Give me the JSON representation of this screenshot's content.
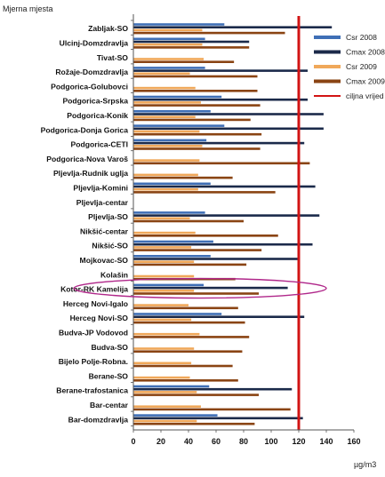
{
  "chart_data": {
    "type": "bar",
    "orientation": "horizontal",
    "title": "Mjerna mjesta",
    "xlabel": "µg/m3",
    "ylabel": "",
    "xlim": [
      0,
      160
    ],
    "xticks": [
      0,
      20,
      40,
      60,
      80,
      100,
      120,
      140,
      160
    ],
    "grid": false,
    "legend_position": "right",
    "target_line": {
      "name": "ciljna vrijed",
      "value": 120,
      "color": "#d21414"
    },
    "highlighted_category": "Kotor-RK Kamelija",
    "highlight_color": "#b0278a",
    "categories": [
      "Zabljak-SO",
      "Ulcinj-Domzdravlja",
      "Tivat-SO",
      "Rožaje-Domzdravlja",
      "Podgorica-Golubovci",
      "Podgorica-Srpska",
      "Podgorica-Konik",
      "Podgorica-Donja Gorica",
      "Podgorica-CETI",
      "Podgorica-Nova Varoš",
      "Pljevlja-Rudnik uglja",
      "Pljevlja-Komini",
      "Pljevlja-centar",
      "Pljevlja-SO",
      "Nikšić-centar",
      "Nikšić-SO",
      "Mojkovac-SO",
      "Kolašin",
      "Kotor-RK Kamelija",
      "Herceg Novi-Igalo",
      "Herceg Novi-SO",
      "Budva-JP Vodovod",
      "Budva-SO",
      "Bijelo Polje-Robna.",
      "Berane-SO",
      "Berane-trafostanica",
      "Bar-centar",
      "Bar-domzdravlja"
    ],
    "series": [
      {
        "name": "Csr 2008",
        "color": "#3f6fb6",
        "values": [
          66,
          52,
          null,
          52,
          null,
          64,
          56,
          66,
          53,
          null,
          null,
          56,
          null,
          52,
          null,
          58,
          56,
          null,
          51,
          null,
          64,
          null,
          null,
          null,
          null,
          55,
          null,
          61
        ]
      },
      {
        "name": "Cmax 2008",
        "color": "#1b2a4a",
        "values": [
          144,
          84,
          null,
          131,
          null,
          132,
          138,
          138,
          124,
          null,
          null,
          132,
          null,
          135,
          null,
          130,
          120,
          null,
          112,
          null,
          124,
          null,
          null,
          null,
          null,
          115,
          null,
          123
        ]
      },
      {
        "name": "Csr 2009",
        "color": "#f0a85a",
        "values": [
          50,
          50,
          51,
          41,
          45,
          49,
          45,
          48,
          50,
          48,
          47,
          47,
          null,
          41,
          45,
          42,
          44,
          44,
          44,
          40,
          42,
          48,
          44,
          42,
          41,
          46,
          49,
          46
        ]
      },
      {
        "name": "Cmax 2009",
        "color": "#8a4413",
        "values": [
          110,
          84,
          73,
          90,
          90,
          92,
          85,
          93,
          92,
          128,
          72,
          103,
          null,
          80,
          105,
          93,
          82,
          74,
          91,
          76,
          81,
          84,
          79,
          72,
          76,
          91,
          114,
          88
        ]
      }
    ]
  }
}
